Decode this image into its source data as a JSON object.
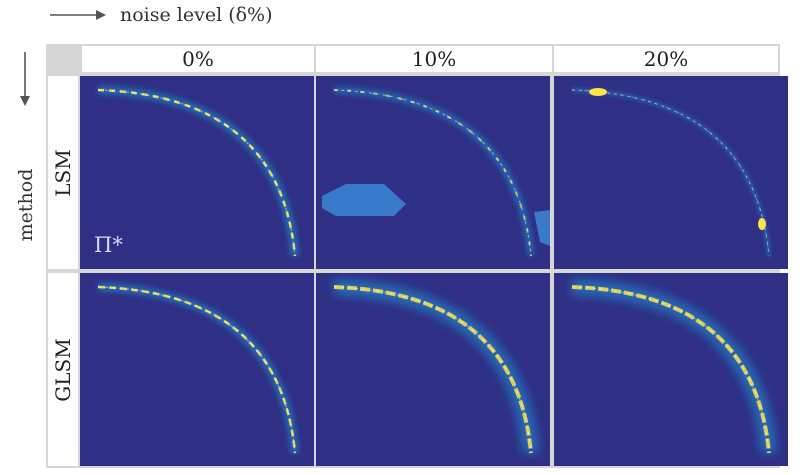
{
  "header": {
    "x_axis_label": "noise level (δ%)",
    "y_axis_label": "method"
  },
  "columns": [
    {
      "label": "0%"
    },
    {
      "label": "10%"
    },
    {
      "label": "20%"
    }
  ],
  "rows": [
    {
      "label": "LSM"
    },
    {
      "label": "GLSM"
    }
  ],
  "annotation": {
    "pi_star": "Π*"
  },
  "colors": {
    "background": "#2f2f85",
    "arc_glow": "#1f9fe0",
    "arc_core": "#ffe14a",
    "artifact": "#3a86d6"
  }
}
